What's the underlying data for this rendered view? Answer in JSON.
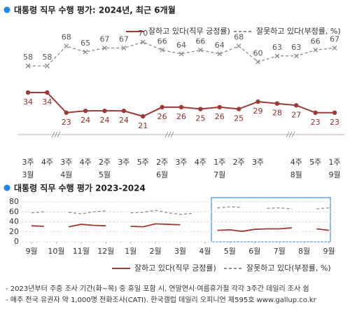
{
  "chart_data": [
    {
      "type": "line",
      "title": "대통령 직무 수행 평가: 2024년, 최근 6개월",
      "categories": [
        "3주",
        "4주",
        "3주",
        "4주",
        "2주",
        "3주",
        "5주",
        "2주",
        "3주",
        "4주",
        "1주",
        "2주",
        "3주",
        null,
        "4주",
        "5주",
        "1주"
      ],
      "month_labels": [
        "3월",
        null,
        "4월",
        null,
        "5월",
        null,
        null,
        "6월",
        null,
        null,
        "7월",
        null,
        null,
        null,
        "8월",
        null,
        "9월"
      ],
      "series": [
        {
          "name": "잘하고 있다(직무 긍정률)",
          "color": "#9e3a34",
          "dash": false,
          "marker": "circle",
          "label_position": "below",
          "values": [
            34,
            34,
            23,
            24,
            24,
            24,
            21,
            26,
            26,
            25,
            26,
            25,
            29,
            28,
            27,
            23,
            23
          ]
        },
        {
          "name": "잘못하고 있다(부정률, %)",
          "color": "#8c8c8c",
          "dash": true,
          "marker": "x",
          "label_position": "above",
          "values": [
            58,
            58,
            68,
            65,
            67,
            67,
            70,
            66,
            64,
            66,
            64,
            68,
            60,
            63,
            63,
            66,
            67
          ]
        }
      ]
    },
    {
      "type": "trend",
      "title": "대통령 직무 수행 평가 2023-2024",
      "x": [
        0,
        0.5,
        1,
        1.5,
        2,
        2.5,
        3,
        3.5,
        4,
        4.5,
        5,
        5.5,
        6,
        6.5,
        7,
        7.5,
        8,
        8.5,
        9,
        9.5,
        10,
        10.5,
        11,
        11.5,
        12
      ],
      "xlim": [
        0,
        12
      ],
      "xticks": [
        {
          "value": 0,
          "label": "9월"
        },
        {
          "value": 1,
          "label": "10월"
        },
        {
          "value": 2,
          "label": "11월"
        },
        {
          "value": 3,
          "label": "12월"
        },
        {
          "value": 4,
          "label": "1월"
        },
        {
          "value": 5,
          "label": "2월"
        },
        {
          "value": 6,
          "label": "3월"
        },
        {
          "value": 7,
          "label": "4월"
        },
        {
          "value": 8,
          "label": "5월"
        },
        {
          "value": 9,
          "label": "6월"
        },
        {
          "value": 10,
          "label": "7월"
        },
        {
          "value": 11,
          "label": "8월"
        },
        {
          "value": 12,
          "label": "9월"
        }
      ],
      "ylim": [
        0,
        80
      ],
      "yticks": [
        0,
        20,
        40,
        60,
        80
      ],
      "grid": true,
      "series": [
        {
          "name": "잘하고 있다(직무 긍정률)",
          "color": "#9e3a34",
          "dash": false,
          "values": [
            32,
            31,
            null,
            30,
            35,
            33,
            32,
            null,
            31,
            30,
            36,
            35,
            34,
            null,
            null,
            23,
            24,
            21,
            25,
            26,
            26,
            28,
            null,
            26,
            23
          ]
        },
        {
          "name": "잘못하고 있다(부정률, %)",
          "color": "#8c8c8c",
          "dash": true,
          "values": [
            58,
            60,
            null,
            59,
            56,
            60,
            62,
            null,
            58,
            59,
            63,
            58,
            55,
            57,
            null,
            68,
            70,
            69,
            null,
            67,
            68,
            66,
            null,
            66,
            68
          ]
        }
      ]
    }
  ],
  "footnotes": [
    "- 2023년부터 주중 조사 기간(화~목) 중 휴일 포함 시, 연말연시·여름휴가철 각각 3주간 데일리 조사 쉼",
    "- 매주 전국 유권자 약 1,000명 전화조사(CATI). 한국갤럽 데일리 오피니언 제595호 www.gallup.co.kr"
  ]
}
